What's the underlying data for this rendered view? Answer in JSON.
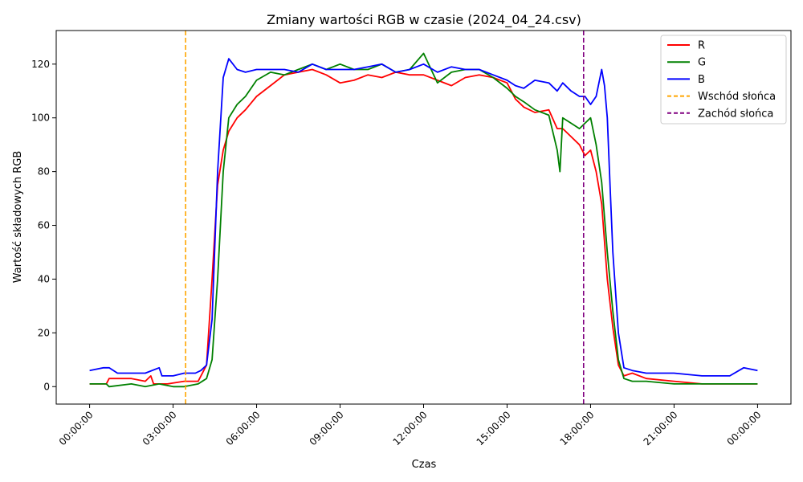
{
  "chart_data": {
    "type": "line",
    "title": "Zmiany wartości RGB w czasie (2024_04_24.csv)",
    "xlabel": "Czas",
    "ylabel": "Wartość składowych RGB",
    "x_unit": "hours",
    "xlim": [
      -1.2,
      25.2
    ],
    "ylim": [
      -6.5,
      132.5
    ],
    "x_ticks": [
      {
        "value": 0,
        "label": "00:00:00"
      },
      {
        "value": 3,
        "label": "03:00:00"
      },
      {
        "value": 6,
        "label": "06:00:00"
      },
      {
        "value": 9,
        "label": "09:00:00"
      },
      {
        "value": 12,
        "label": "12:00:00"
      },
      {
        "value": 15,
        "label": "15:00:00"
      },
      {
        "value": 18,
        "label": "18:00:00"
      },
      {
        "value": 21,
        "label": "21:00:00"
      },
      {
        "value": 24,
        "label": "00:00:00"
      }
    ],
    "y_ticks": [
      0,
      20,
      40,
      60,
      80,
      100,
      120
    ],
    "grid": false,
    "legend_position": "top-right",
    "series": [
      {
        "name": "R",
        "color": "#ff0000",
        "x": [
          0,
          0.6,
          0.7,
          1.5,
          2.0,
          2.2,
          2.3,
          2.8,
          3.4,
          3.9,
          4.2,
          4.4,
          4.6,
          4.8,
          5.0,
          5.3,
          5.6,
          6.0,
          6.5,
          7.0,
          7.5,
          8.0,
          8.5,
          9.0,
          9.5,
          10.0,
          10.5,
          11.0,
          11.5,
          12.0,
          12.5,
          13.0,
          13.5,
          14.0,
          14.5,
          15.0,
          15.3,
          15.6,
          16.0,
          16.5,
          16.8,
          17.0,
          17.3,
          17.6,
          17.8,
          18.0,
          18.2,
          18.4,
          18.6,
          18.8,
          19.0,
          19.2,
          19.5,
          20.0,
          21.0,
          22.0,
          23.0,
          24.0
        ],
        "y": [
          1,
          1,
          3,
          3,
          2,
          4,
          1,
          1,
          2,
          2,
          8,
          40,
          75,
          88,
          95,
          100,
          103,
          108,
          112,
          116,
          117,
          118,
          116,
          113,
          114,
          116,
          115,
          117,
          116,
          116,
          114,
          112,
          115,
          116,
          115,
          113,
          107,
          104,
          102,
          103,
          96,
          96,
          93,
          90,
          86,
          88,
          80,
          68,
          40,
          22,
          8,
          4,
          5,
          3,
          2,
          1,
          1,
          1
        ]
      },
      {
        "name": "G",
        "color": "#008000",
        "x": [
          0,
          0.6,
          0.7,
          1.5,
          2.0,
          2.5,
          3.0,
          3.4,
          3.9,
          4.2,
          4.4,
          4.6,
          4.8,
          5.0,
          5.3,
          5.6,
          6.0,
          6.5,
          7.0,
          7.5,
          8.0,
          8.5,
          9.0,
          9.5,
          10.0,
          10.5,
          11.0,
          11.5,
          12.0,
          12.5,
          13.0,
          13.5,
          14.0,
          14.5,
          15.0,
          15.3,
          15.6,
          16.0,
          16.5,
          16.8,
          16.9,
          17.0,
          17.3,
          17.6,
          17.8,
          18.0,
          18.2,
          18.4,
          18.6,
          18.8,
          19.0,
          19.2,
          19.5,
          20.0,
          21.0,
          22.0,
          23.0,
          24.0
        ],
        "y": [
          1,
          1,
          0,
          1,
          0,
          1,
          0,
          0,
          1,
          3,
          10,
          40,
          80,
          100,
          105,
          108,
          114,
          117,
          116,
          118,
          120,
          118,
          120,
          118,
          118,
          120,
          117,
          118,
          124,
          113,
          117,
          118,
          118,
          115,
          111,
          108,
          106,
          103,
          101,
          88,
          80,
          100,
          98,
          96,
          98,
          100,
          90,
          76,
          50,
          28,
          10,
          3,
          2,
          2,
          1,
          1,
          1,
          1
        ]
      },
      {
        "name": "B",
        "color": "#0000ff",
        "x": [
          0,
          0.5,
          0.7,
          1.0,
          1.5,
          2.0,
          2.5,
          2.6,
          3.0,
          3.4,
          3.8,
          4.0,
          4.2,
          4.4,
          4.6,
          4.8,
          5.0,
          5.3,
          5.6,
          6.0,
          6.5,
          7.0,
          7.5,
          8.0,
          8.5,
          9.0,
          9.5,
          10.0,
          10.5,
          11.0,
          11.5,
          12.0,
          12.5,
          13.0,
          13.5,
          14.0,
          14.5,
          15.0,
          15.3,
          15.6,
          16.0,
          16.5,
          16.8,
          17.0,
          17.3,
          17.6,
          17.8,
          18.0,
          18.2,
          18.4,
          18.5,
          18.6,
          18.7,
          18.8,
          19.0,
          19.2,
          19.5,
          20.0,
          21.0,
          22.0,
          23.0,
          23.5,
          24.0
        ],
        "y": [
          6,
          7,
          7,
          5,
          5,
          5,
          7,
          4,
          4,
          5,
          5,
          6,
          8,
          25,
          80,
          115,
          122,
          118,
          117,
          118,
          118,
          118,
          117,
          120,
          118,
          118,
          118,
          119,
          120,
          117,
          118,
          120,
          117,
          119,
          118,
          118,
          116,
          114,
          112,
          111,
          114,
          113,
          110,
          113,
          110,
          108,
          108,
          105,
          108,
          118,
          112,
          100,
          75,
          50,
          20,
          7,
          6,
          5,
          5,
          4,
          4,
          7,
          6
        ]
      }
    ],
    "vlines": [
      {
        "name": "Wschód słońca",
        "x": 3.45,
        "color": "#ffa500",
        "style": "dashed"
      },
      {
        "name": "Zachód słońca",
        "x": 17.75,
        "color": "#800080",
        "style": "dashed"
      }
    ]
  }
}
